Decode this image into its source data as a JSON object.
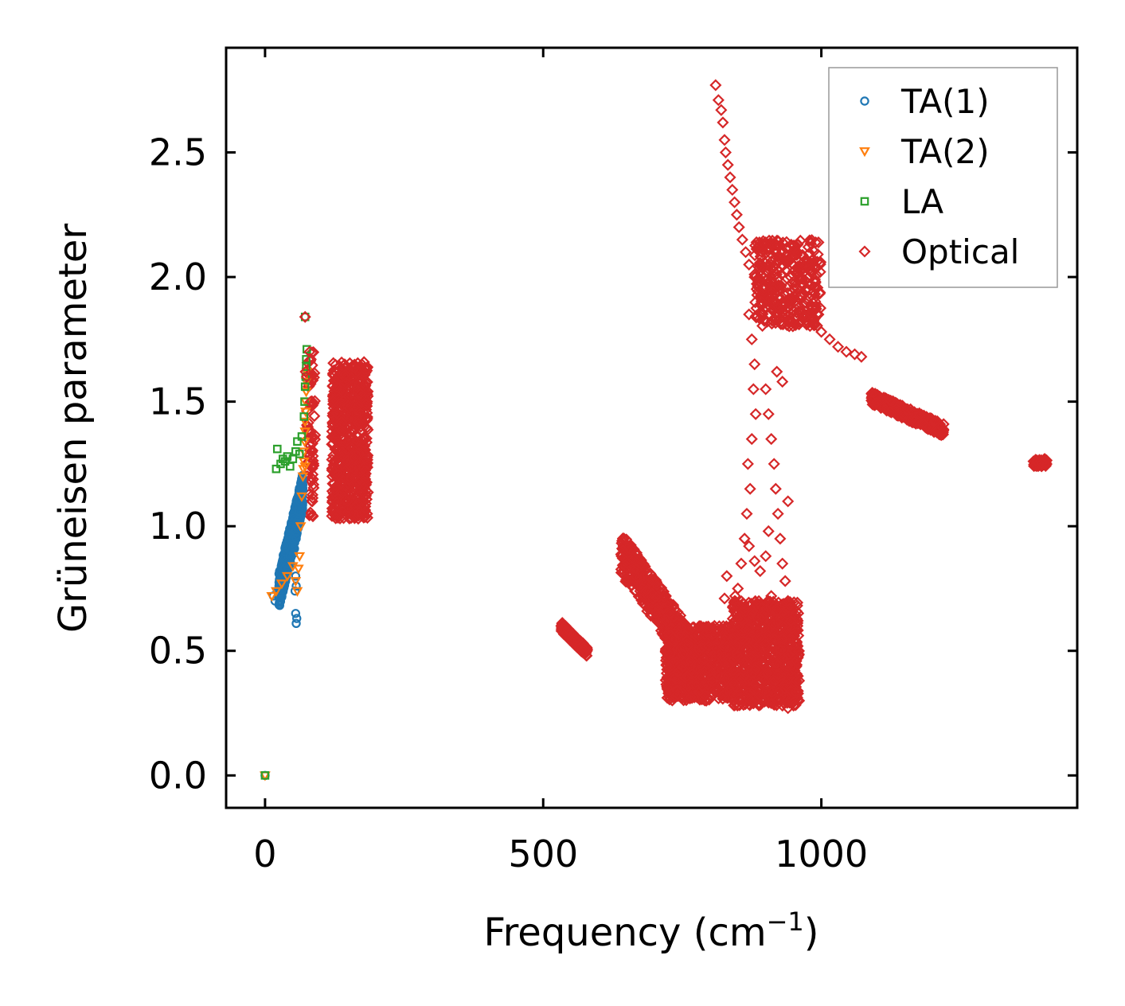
{
  "chart_data": {
    "type": "scatter",
    "title": "",
    "xlabel": "Frequency (cm",
    "xlabel_sup": "−1",
    "xlabel_suffix": ")",
    "ylabel": "Grüneisen parameter",
    "xlim": [
      -70,
      1460
    ],
    "ylim": [
      -0.13,
      2.92
    ],
    "x_ticks": [
      0,
      500,
      1000
    ],
    "x_tick_labels": [
      "0",
      "500",
      "1000"
    ],
    "y_ticks": [
      0.0,
      0.5,
      1.0,
      1.5,
      2.0,
      2.5
    ],
    "y_tick_labels": [
      "0.0",
      "0.5",
      "1.0",
      "1.5",
      "2.0",
      "2.5"
    ],
    "grid": false,
    "legend_position": "top-right",
    "series": [
      {
        "name": "TA(1)",
        "marker": "circle",
        "color": "#1f77b4",
        "points": [
          [
            0,
            0
          ],
          [
            15,
            0.72
          ],
          [
            18,
            0.7
          ],
          [
            22,
            0.74
          ],
          [
            25,
            0.76
          ],
          [
            28,
            0.78
          ],
          [
            30,
            0.77
          ],
          [
            32,
            0.8
          ],
          [
            35,
            0.79
          ],
          [
            38,
            0.82
          ],
          [
            40,
            0.84
          ],
          [
            42,
            0.83
          ],
          [
            44,
            0.86
          ],
          [
            45,
            0.88
          ],
          [
            46,
            0.85
          ],
          [
            48,
            0.9
          ],
          [
            50,
            0.92
          ],
          [
            51,
            0.89
          ],
          [
            52,
            0.94
          ],
          [
            53,
            0.91
          ],
          [
            54,
            0.96
          ],
          [
            55,
            0.98
          ],
          [
            56,
            0.95
          ],
          [
            57,
            1.0
          ],
          [
            58,
            1.02
          ],
          [
            59,
            0.99
          ],
          [
            60,
            1.04
          ],
          [
            61,
            1.06
          ],
          [
            62,
            1.08
          ],
          [
            63,
            1.1
          ],
          [
            64,
            1.12
          ],
          [
            65,
            1.14
          ],
          [
            66,
            1.16
          ],
          [
            55,
            0.8
          ],
          [
            56,
            0.76
          ],
          [
            54,
            0.74
          ],
          [
            55,
            0.65
          ],
          [
            56,
            0.61
          ],
          [
            57,
            0.63
          ]
        ]
      },
      {
        "name": "TA(2)",
        "marker": "triangle-down",
        "color": "#ff7f0e",
        "points": [
          [
            0,
            0
          ],
          [
            12,
            0.72
          ],
          [
            20,
            0.74
          ],
          [
            30,
            0.77
          ],
          [
            40,
            0.8
          ],
          [
            50,
            0.84
          ],
          [
            55,
            0.78
          ],
          [
            58,
            0.74
          ],
          [
            60,
            0.83
          ],
          [
            62,
            0.88
          ],
          [
            64,
            1.0
          ],
          [
            66,
            1.12
          ],
          [
            68,
            1.2
          ],
          [
            70,
            1.26
          ],
          [
            70,
            1.3
          ],
          [
            71,
            1.34
          ],
          [
            72,
            1.38
          ],
          [
            72,
            1.42
          ],
          [
            73,
            1.46
          ],
          [
            73,
            1.5
          ],
          [
            74,
            1.54
          ],
          [
            74,
            1.58
          ],
          [
            75,
            1.62
          ],
          [
            72,
            1.24
          ],
          [
            69,
            1.23
          ]
        ]
      },
      {
        "name": "LA",
        "marker": "square",
        "color": "#2ca02c",
        "points": [
          [
            0,
            0
          ],
          [
            20,
            1.23
          ],
          [
            22,
            1.31
          ],
          [
            28,
            1.25
          ],
          [
            32,
            1.27
          ],
          [
            36,
            1.26
          ],
          [
            40,
            1.28
          ],
          [
            45,
            1.24
          ],
          [
            50,
            1.27
          ],
          [
            55,
            1.3
          ],
          [
            58,
            1.34
          ],
          [
            62,
            1.29
          ],
          [
            66,
            1.36
          ],
          [
            70,
            1.44
          ],
          [
            71,
            1.5
          ],
          [
            72,
            1.56
          ],
          [
            73,
            1.6
          ],
          [
            74,
            1.64
          ],
          [
            74,
            1.67
          ],
          [
            75,
            1.71
          ],
          [
            72,
            1.84
          ]
        ]
      },
      {
        "name": "Optical",
        "marker": "diamond",
        "color": "#d62728",
        "points": [
          [
            72,
            1.84
          ],
          [
            73,
            1.62
          ],
          [
            75,
            1.6
          ],
          [
            80,
            1.7
          ],
          [
            82,
            1.5
          ],
          [
            84,
            1.3
          ],
          [
            85,
            1.1
          ],
          [
            86,
            1.04
          ],
          [
            810,
            2.77
          ],
          [
            815,
            2.71
          ],
          [
            820,
            2.67
          ],
          [
            823,
            2.62
          ],
          [
            826,
            2.55
          ],
          [
            828,
            2.5
          ],
          [
            832,
            2.45
          ],
          [
            836,
            2.4
          ],
          [
            840,
            2.35
          ],
          [
            844,
            2.3
          ],
          [
            848,
            2.25
          ],
          [
            852,
            2.2
          ],
          [
            858,
            2.15
          ],
          [
            864,
            2.1
          ],
          [
            870,
            2.05
          ],
          [
            880,
            2.0
          ],
          [
            890,
            1.98
          ],
          [
            900,
            1.96
          ],
          [
            912,
            1.94
          ],
          [
            925,
            1.92
          ],
          [
            940,
            1.9
          ],
          [
            955,
            1.87
          ],
          [
            970,
            1.84
          ],
          [
            985,
            1.81
          ],
          [
            1000,
            1.78
          ],
          [
            1015,
            1.75
          ],
          [
            1030,
            1.72
          ],
          [
            1045,
            1.7
          ],
          [
            1060,
            1.69
          ],
          [
            1072,
            1.68
          ],
          [
            870,
            1.85
          ],
          [
            875,
            1.75
          ],
          [
            880,
            1.65
          ],
          [
            878,
            1.55
          ],
          [
            882,
            1.45
          ],
          [
            875,
            1.35
          ],
          [
            868,
            1.25
          ],
          [
            872,
            1.15
          ],
          [
            866,
            1.05
          ],
          [
            862,
            0.95
          ],
          [
            856,
            0.85
          ],
          [
            850,
            0.75
          ],
          [
            845,
            0.72
          ],
          [
            900,
            1.55
          ],
          [
            905,
            1.45
          ],
          [
            910,
            1.35
          ],
          [
            915,
            1.25
          ],
          [
            918,
            1.15
          ],
          [
            922,
            1.05
          ],
          [
            926,
            0.95
          ],
          [
            930,
            0.85
          ],
          [
            935,
            0.78
          ],
          [
            940,
            0.7
          ],
          [
            945,
            0.62
          ],
          [
            950,
            0.54
          ],
          [
            955,
            0.46
          ],
          [
            960,
            0.38
          ],
          [
            920,
            1.62
          ],
          [
            930,
            1.58
          ],
          [
            940,
            1.1
          ],
          [
            905,
            0.98
          ],
          [
            830,
            0.8
          ],
          [
            826,
            0.71
          ],
          [
            840,
            0.55
          ],
          [
            850,
            0.48
          ],
          [
            860,
            0.42
          ],
          [
            870,
            0.38
          ],
          [
            880,
            0.34
          ],
          [
            890,
            0.32
          ],
          [
            900,
            0.3
          ],
          [
            910,
            0.29
          ],
          [
            920,
            0.3
          ],
          [
            930,
            0.28
          ],
          [
            940,
            0.27
          ],
          [
            950,
            0.28
          ],
          [
            960,
            0.3
          ],
          [
            870,
            0.92
          ],
          [
            880,
            0.86
          ],
          [
            890,
            0.82
          ],
          [
            900,
            0.88
          ],
          [
            910,
            0.72
          ],
          [
            920,
            0.66
          ],
          [
            930,
            0.6
          ],
          [
            945,
            0.34
          ],
          [
            955,
            0.33
          ]
        ]
      }
    ],
    "clusters": [
      {
        "series": "Optical",
        "x_range": [
          75,
          90
        ],
        "y_range": [
          1.04,
          1.7
        ],
        "count": 80
      },
      {
        "series": "Optical",
        "x_range": [
          120,
          185
        ],
        "y_range": [
          1.03,
          1.66
        ],
        "count": 700
      },
      {
        "series": "Optical",
        "x_range": [
          532,
          580
        ],
        "y_range": [
          0.49,
          0.6
        ],
        "count": 150,
        "slope": -0.0022
      },
      {
        "series": "Optical",
        "x_range": [
          640,
          780
        ],
        "y_range": [
          0.42,
          0.92
        ],
        "count": 500,
        "slope": -0.0032
      },
      {
        "series": "Optical",
        "x_range": [
          720,
          840
        ],
        "y_range": [
          0.3,
          0.6
        ],
        "count": 700
      },
      {
        "series": "Optical",
        "x_range": [
          840,
          960
        ],
        "y_range": [
          0.28,
          0.7
        ],
        "count": 900
      },
      {
        "series": "Optical",
        "x_range": [
          880,
          1000
        ],
        "y_range": [
          1.8,
          2.15
        ],
        "count": 350
      },
      {
        "series": "Optical",
        "x_range": [
          1090,
          1220
        ],
        "y_range": [
          1.38,
          1.52
        ],
        "count": 450,
        "slope": -0.001
      },
      {
        "series": "Optical",
        "x_range": [
          1380,
          1405
        ],
        "y_range": [
          1.24,
          1.27
        ],
        "count": 60
      },
      {
        "series": "TA(1)",
        "x_range": [
          25,
          68
        ],
        "y_range": [
          0.74,
          1.14
        ],
        "count": 500,
        "slope": 0.0093
      }
    ]
  }
}
